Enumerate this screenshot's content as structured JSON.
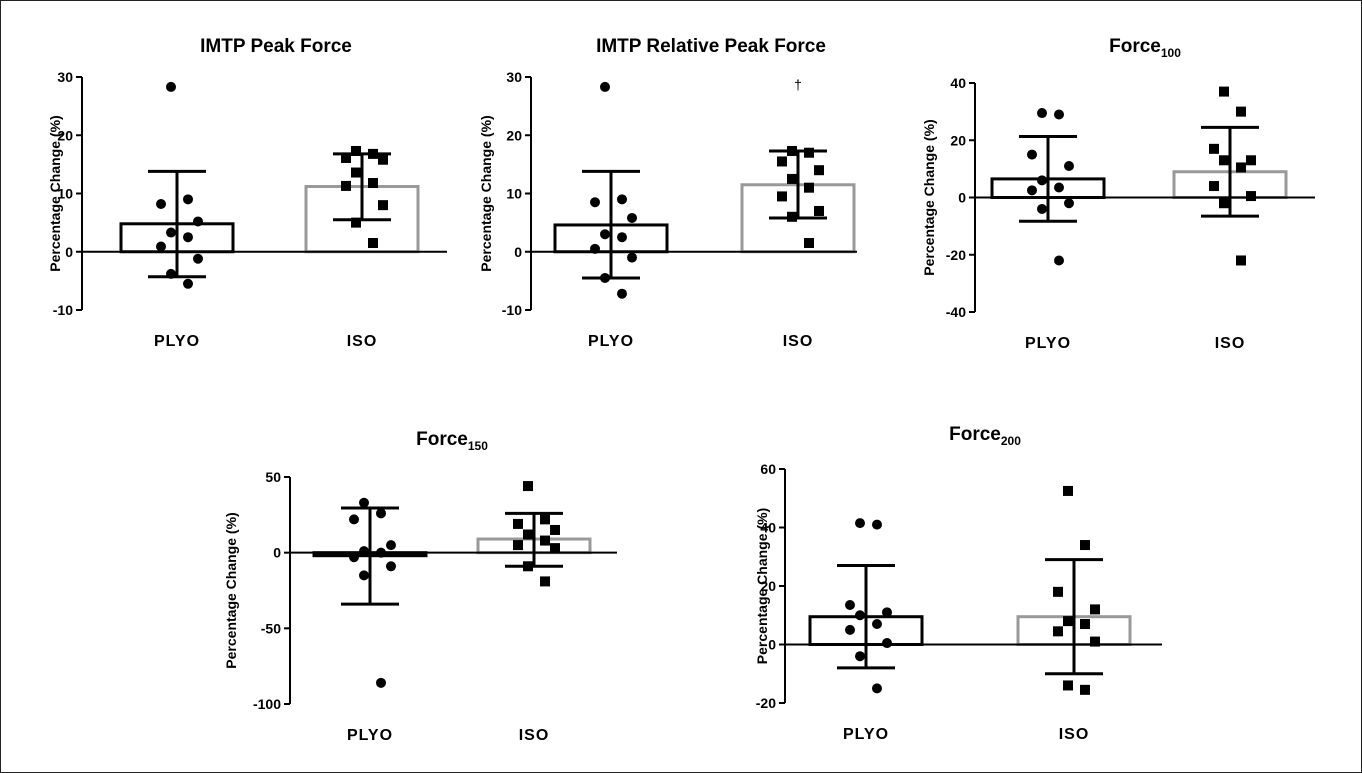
{
  "chart_data": [
    {
      "type": "bar",
      "title": "IMTP Peak  Force",
      "title_sub": "",
      "ylabel": "Percentage Change (%)",
      "ylim": [
        -10,
        30
      ],
      "yticks": [
        -10,
        0,
        10,
        20,
        30
      ],
      "categories": [
        "PLYO",
        "ISO"
      ],
      "bars": [
        {
          "name": "PLYO",
          "mean": 4.8,
          "sd_low": -4.3,
          "sd_high": 13.8,
          "edge_color": "#000000",
          "marker": "circle",
          "points": [
            28.3,
            9.0,
            8.2,
            5.2,
            3.3,
            2.5,
            0.9,
            -1.2,
            -3.8,
            -5.5
          ]
        },
        {
          "name": "ISO",
          "mean": 11.2,
          "sd_low": 5.5,
          "sd_high": 16.8,
          "edge_color": "#999999",
          "marker": "square",
          "points": [
            17.3,
            16.8,
            16.1,
            15.8,
            13.6,
            11.8,
            11.3,
            8.0,
            5.0,
            1.5
          ]
        }
      ],
      "annotations": []
    },
    {
      "type": "bar",
      "title": "IMTP Relative Peak  Force",
      "title_sub": "",
      "ylabel": "Percentage Change (%)",
      "ylim": [
        -10,
        30
      ],
      "yticks": [
        -10,
        0,
        10,
        20,
        30
      ],
      "categories": [
        "PLYO",
        "ISO"
      ],
      "bars": [
        {
          "name": "PLYO",
          "mean": 4.6,
          "sd_low": -4.5,
          "sd_high": 13.8,
          "edge_color": "#000000",
          "marker": "circle",
          "points": [
            28.3,
            9.0,
            8.5,
            5.8,
            3.0,
            2.5,
            0.5,
            -1.0,
            -4.5,
            -7.2
          ]
        },
        {
          "name": "ISO",
          "mean": 11.5,
          "sd_low": 5.8,
          "sd_high": 17.3,
          "edge_color": "#999999",
          "marker": "square",
          "points": [
            17.3,
            17.0,
            15.5,
            14.0,
            12.5,
            11.0,
            9.5,
            7.0,
            6.0,
            1.5
          ]
        }
      ],
      "annotations": [
        {
          "text": "†",
          "bar": "ISO",
          "y": 28.5
        }
      ]
    },
    {
      "type": "bar",
      "title": "Force",
      "title_sub": "100",
      "ylabel": "Percentage Change (%)",
      "ylim": [
        -40,
        40
      ],
      "yticks": [
        -40,
        -20,
        0,
        20,
        40
      ],
      "categories": [
        "PLYO",
        "ISO"
      ],
      "bars": [
        {
          "name": "PLYO",
          "mean": 6.5,
          "sd_low": -8.3,
          "sd_high": 21.3,
          "edge_color": "#000000",
          "marker": "circle",
          "points": [
            29.5,
            29.0,
            15.0,
            11.0,
            6.0,
            3.5,
            2.5,
            -2.0,
            -4.0,
            -22.0
          ]
        },
        {
          "name": "ISO",
          "mean": 9.0,
          "sd_low": -6.5,
          "sd_high": 24.5,
          "edge_color": "#999999",
          "marker": "square",
          "points": [
            37.0,
            30.0,
            17.0,
            13.0,
            13.0,
            10.5,
            4.0,
            0.5,
            -2.0,
            -22.0
          ]
        }
      ],
      "annotations": []
    },
    {
      "type": "bar",
      "title": "Force",
      "title_sub": "150",
      "ylabel": "Percentage Change (%)",
      "ylim": [
        -100,
        50
      ],
      "yticks": [
        -100,
        -50,
        0,
        50
      ],
      "categories": [
        "PLYO",
        "ISO"
      ],
      "bars": [
        {
          "name": "PLYO",
          "mean": -2.0,
          "sd_low": -34.0,
          "sd_high": 29.5,
          "edge_color": "#000000",
          "marker": "circle",
          "points": [
            33.0,
            26.0,
            22.0,
            5.0,
            1.0,
            0.0,
            -3.0,
            -9.0,
            -15.0,
            -86.0
          ]
        },
        {
          "name": "ISO",
          "mean": 9.0,
          "sd_low": -9.0,
          "sd_high": 26.0,
          "edge_color": "#999999",
          "marker": "square",
          "points": [
            44.0,
            22.0,
            19.0,
            15.0,
            12.0,
            8.0,
            5.0,
            3.0,
            -9.0,
            -19.0
          ]
        }
      ],
      "annotations": []
    },
    {
      "type": "bar",
      "title": "Force",
      "title_sub": "200",
      "ylabel": "Percentage Change (%)",
      "ylim": [
        -20,
        60
      ],
      "yticks": [
        -20,
        0,
        20,
        40,
        60
      ],
      "categories": [
        "PLYO",
        "ISO"
      ],
      "bars": [
        {
          "name": "PLYO",
          "mean": 9.5,
          "sd_low": -8.0,
          "sd_high": 27.0,
          "edge_color": "#000000",
          "marker": "circle",
          "points": [
            41.5,
            41.0,
            13.5,
            11.0,
            10.0,
            7.0,
            5.0,
            0.5,
            -4.0,
            -15.0
          ]
        },
        {
          "name": "ISO",
          "mean": 9.5,
          "sd_low": -10.0,
          "sd_high": 29.0,
          "edge_color": "#999999",
          "marker": "square",
          "points": [
            52.5,
            34.0,
            18.0,
            12.0,
            8.0,
            7.0,
            4.5,
            1.0,
            -14.0,
            -15.5
          ]
        }
      ],
      "annotations": []
    }
  ]
}
